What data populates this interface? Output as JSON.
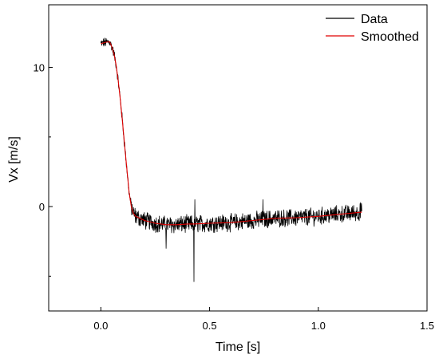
{
  "chart_data": {
    "type": "line",
    "title": "",
    "xlabel": "Time [s]",
    "ylabel": "Vx [m/s]",
    "xlim": [
      -0.24,
      1.5
    ],
    "ylim": [
      -7.5,
      14.5
    ],
    "x_ticks": [
      {
        "value": 0.0,
        "label": "0.0"
      },
      {
        "value": 0.5,
        "label": "0.5"
      },
      {
        "value": 1.0,
        "label": "1.0"
      },
      {
        "value": 1.5,
        "label": "1.5"
      }
    ],
    "y_ticks": [
      {
        "value": 0,
        "label": "0"
      },
      {
        "value": 10,
        "label": "10"
      }
    ],
    "y_minor_ticks": [
      -5,
      5
    ],
    "grid": false,
    "legend": "top-right",
    "series": [
      {
        "name": "Data",
        "color": "#000000",
        "points": [
          [
            0.0,
            11.7
          ],
          [
            0.02,
            11.8
          ],
          [
            0.04,
            11.85
          ],
          [
            0.05,
            11.5
          ],
          [
            0.06,
            11.0
          ],
          [
            0.07,
            10.2
          ],
          [
            0.08,
            9.0
          ],
          [
            0.09,
            7.6
          ],
          [
            0.1,
            6.0
          ],
          [
            0.11,
            4.3
          ],
          [
            0.12,
            2.6
          ],
          [
            0.13,
            1.0
          ],
          [
            0.14,
            0.0
          ],
          [
            0.15,
            -0.5
          ],
          [
            0.16,
            -0.7
          ],
          [
            0.2,
            -1.0
          ],
          [
            0.25,
            -1.2
          ],
          [
            0.3,
            -1.3
          ],
          [
            0.35,
            -1.3
          ],
          [
            0.4,
            -1.25
          ],
          [
            0.43,
            -1.25
          ],
          [
            0.5,
            -1.2
          ],
          [
            0.6,
            -1.15
          ],
          [
            0.7,
            -1.0
          ],
          [
            0.8,
            -0.85
          ],
          [
            0.9,
            -0.8
          ],
          [
            1.0,
            -0.7
          ],
          [
            1.1,
            -0.55
          ],
          [
            1.2,
            -0.4
          ]
        ],
        "noise": 0.55,
        "spikes": [
          [
            0.428,
            -5.4
          ],
          [
            0.432,
            0.5
          ],
          [
            0.3,
            -3.0
          ],
          [
            0.745,
            0.5
          ],
          [
            1.195,
            0.3
          ]
        ]
      },
      {
        "name": "Smoothed",
        "color": "#e00000",
        "points": [
          [
            0.0,
            11.7
          ],
          [
            0.02,
            11.8
          ],
          [
            0.04,
            11.85
          ],
          [
            0.05,
            11.5
          ],
          [
            0.06,
            11.0
          ],
          [
            0.07,
            10.2
          ],
          [
            0.08,
            9.0
          ],
          [
            0.09,
            7.6
          ],
          [
            0.1,
            6.0
          ],
          [
            0.11,
            4.3
          ],
          [
            0.12,
            2.6
          ],
          [
            0.13,
            1.0
          ],
          [
            0.14,
            0.0
          ],
          [
            0.15,
            -0.5
          ],
          [
            0.16,
            -0.7
          ],
          [
            0.2,
            -1.0
          ],
          [
            0.25,
            -1.2
          ],
          [
            0.3,
            -1.3
          ],
          [
            0.35,
            -1.3
          ],
          [
            0.4,
            -1.25
          ],
          [
            0.43,
            -1.25
          ],
          [
            0.5,
            -1.2
          ],
          [
            0.6,
            -1.15
          ],
          [
            0.7,
            -1.0
          ],
          [
            0.8,
            -0.85
          ],
          [
            0.9,
            -0.8
          ],
          [
            1.0,
            -0.7
          ],
          [
            1.1,
            -0.55
          ],
          [
            1.2,
            -0.4
          ]
        ]
      }
    ]
  }
}
